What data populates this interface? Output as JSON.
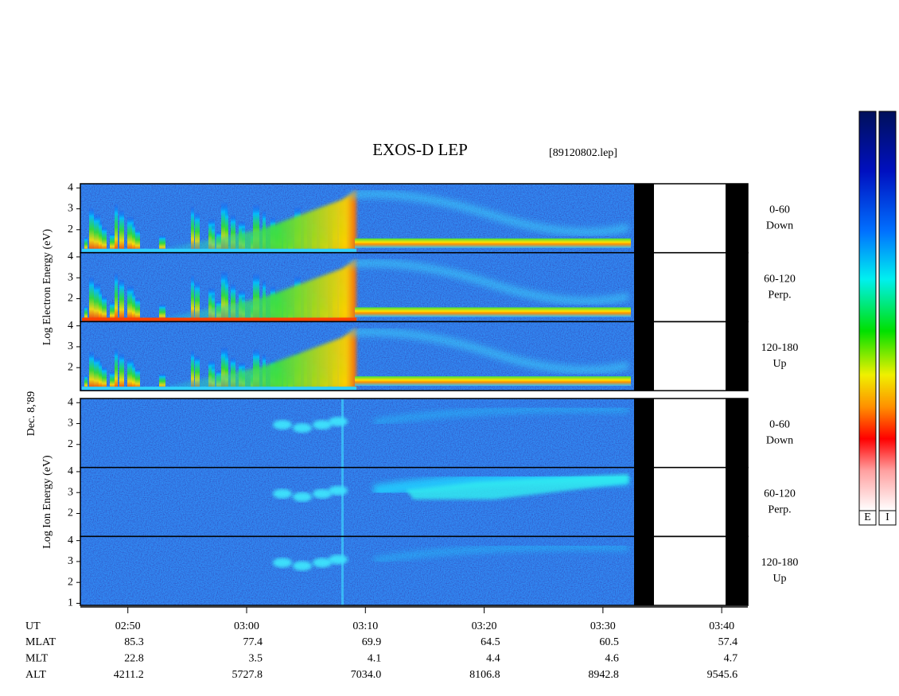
{
  "chart_data": {
    "type": "spectrogram",
    "title": "EXOS-D LEP",
    "subtitle": "[89120802.lep]",
    "date": "Dec. 8,'89",
    "xlim": [
      166,
      222.2
    ],
    "xticks": [
      {
        "value": 170,
        "label": "02:50"
      },
      {
        "value": 180,
        "label": "03:00"
      },
      {
        "value": 190,
        "label": "03:10"
      },
      {
        "value": 200,
        "label": "03:20"
      },
      {
        "value": 210,
        "label": "03:30"
      },
      {
        "value": 220,
        "label": "03:40"
      }
    ],
    "groups": [
      {
        "ylabel": "Log Electron Energy (eV)",
        "species": "electron",
        "panels": [
          {
            "label": [
              "0-60",
              "Down"
            ],
            "ylim": [
              0.9,
              4.2
            ],
            "yticks": [
              2,
              3,
              4
            ]
          },
          {
            "label": [
              "60-120",
              "Perp."
            ],
            "ylim": [
              0.9,
              4.2
            ],
            "yticks": [
              2,
              3,
              4
            ]
          },
          {
            "label": [
              "120-180",
              "Up"
            ],
            "ylim": [
              0.9,
              4.2
            ],
            "yticks": [
              2,
              3,
              4
            ]
          }
        ]
      },
      {
        "ylabel": "Log Ion Energy (eV)",
        "species": "ion",
        "panels": [
          {
            "label": [
              "0-60",
              "Down"
            ],
            "ylim": [
              0.9,
              4.2
            ],
            "yticks": [
              2,
              3,
              4
            ]
          },
          {
            "label": [
              "60-120",
              "Perp."
            ],
            "ylim": [
              0.9,
              4.2
            ],
            "yticks": [
              2,
              3,
              4
            ]
          },
          {
            "label": [
              "120-180",
              "Up"
            ],
            "ylim": [
              0.9,
              4.2
            ],
            "yticks": [
              1,
              2,
              3,
              4
            ]
          }
        ]
      }
    ],
    "ephemeris": {
      "time_label": "UT",
      "rows": [
        {
          "name": "MLAT",
          "values": [
            "85.3",
            "77.4",
            "69.9",
            "64.5",
            "60.5",
            "57.4"
          ]
        },
        {
          "name": "MLT",
          "values": [
            "22.8",
            "3.5",
            "4.1",
            "4.4",
            "4.6",
            "4.7"
          ]
        },
        {
          "name": "ALT",
          "values": [
            "4211.2",
            "5727.8",
            "7034.0",
            "8106.8",
            "8942.8",
            "9545.6"
          ]
        }
      ]
    },
    "colorbars": [
      "E",
      "I"
    ]
  }
}
